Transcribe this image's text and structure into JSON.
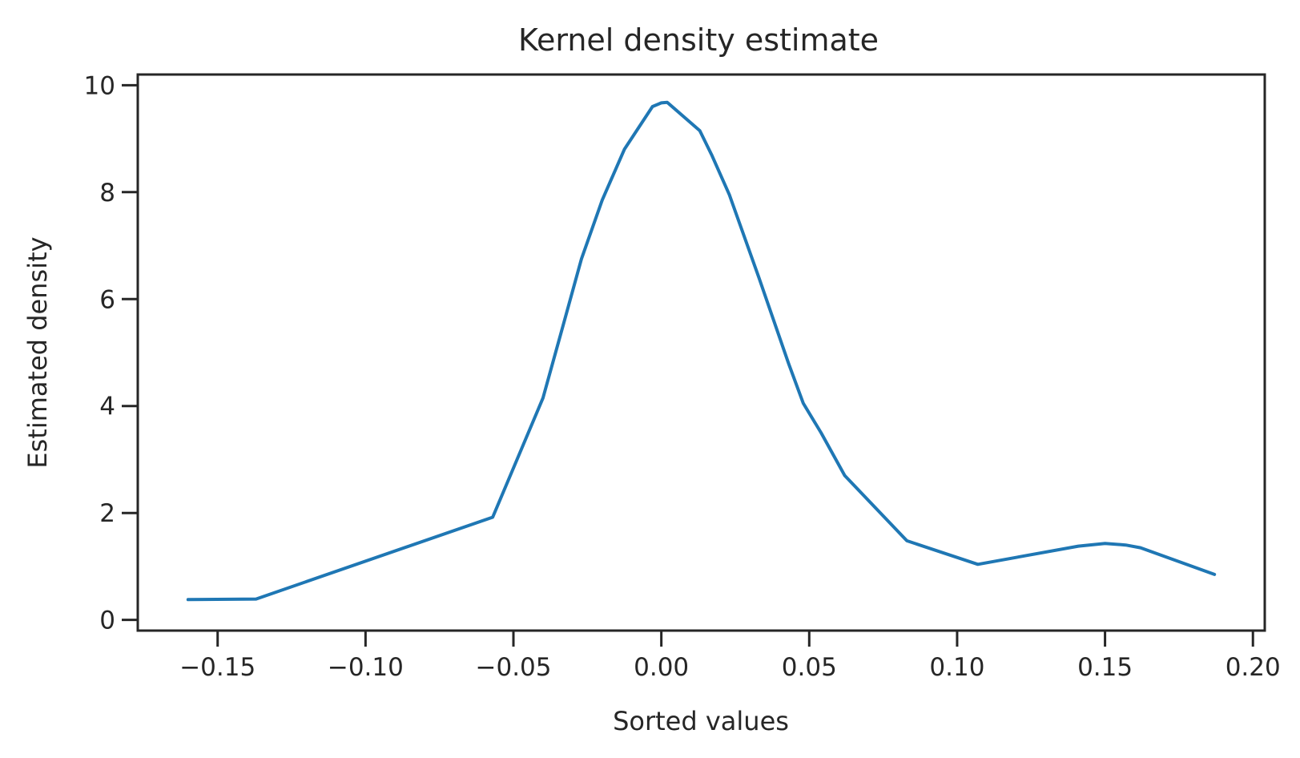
{
  "chart_data": {
    "type": "line",
    "title": "Kernel density estimate",
    "xlabel": "Sorted values",
    "ylabel": "Estimated density",
    "xlim": [
      -0.177,
      0.204
    ],
    "ylim": [
      -0.2,
      10.2
    ],
    "xticks": [
      -0.15,
      -0.1,
      -0.05,
      0.0,
      0.05,
      0.1,
      0.15,
      0.2
    ],
    "xtick_labels": [
      "−0.15",
      "−0.10",
      "−0.05",
      "0.00",
      "0.05",
      "0.10",
      "0.15",
      "0.20"
    ],
    "yticks": [
      0,
      2,
      4,
      6,
      8,
      10
    ],
    "ytick_labels": [
      "0",
      "2",
      "4",
      "6",
      "8",
      "10"
    ],
    "grid": false,
    "series": [
      {
        "name": "Estimated density",
        "color": "#1f77b4",
        "x": [
          -0.16,
          -0.137,
          -0.057,
          -0.04,
          -0.033,
          -0.027,
          -0.02,
          -0.0125,
          -0.003,
          0.0,
          0.002,
          0.013,
          0.017,
          0.023,
          0.033,
          0.043,
          0.048,
          0.054,
          0.062,
          0.083,
          0.107,
          0.141,
          0.15,
          0.157,
          0.162,
          0.187
        ],
        "y": [
          0.38,
          0.39,
          1.92,
          4.15,
          5.55,
          6.75,
          7.85,
          8.8,
          9.6,
          9.67,
          9.68,
          9.15,
          8.7,
          7.95,
          6.4,
          4.8,
          4.05,
          3.5,
          2.7,
          1.48,
          1.04,
          1.38,
          1.43,
          1.4,
          1.35,
          0.85
        ]
      }
    ]
  },
  "colors": {
    "axis": "#262626",
    "line": "#1f77b4",
    "background": "#ffffff"
  }
}
